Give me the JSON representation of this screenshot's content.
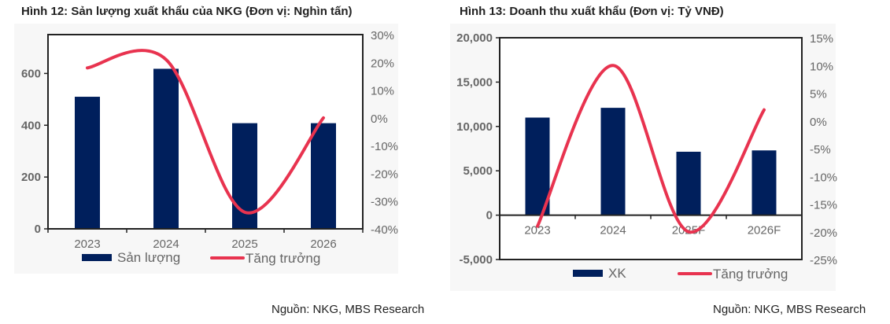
{
  "chart_data": [
    {
      "type": "bar+line",
      "title": "Hình 12: Sản lượng xuất khẩu của NKG (Đơn vị: Nghìn tấn)",
      "categories": [
        "2023",
        "2024",
        "2025",
        "2026"
      ],
      "series": [
        {
          "name": "Sản lượng",
          "type": "bar",
          "axis": "left",
          "values": [
            510,
            618,
            408,
            408
          ],
          "color": "#001f5c"
        },
        {
          "name": "Tăng trưởng",
          "type": "line",
          "axis": "right",
          "values": [
            18,
            21,
            -34,
            0
          ],
          "color": "#e8334f"
        }
      ],
      "left_axis": {
        "ylim": [
          0,
          750
        ],
        "ticks": [
          "0",
          "200",
          "400",
          "600"
        ],
        "tick_values": [
          0,
          200,
          400,
          600
        ]
      },
      "right_axis": {
        "ylim": [
          -40,
          30
        ],
        "ticks": [
          "30%",
          "20%",
          "10%",
          "0%",
          "-10%",
          "-20%",
          "-30%",
          "-40%"
        ],
        "tick_values": [
          30,
          20,
          10,
          0,
          -10,
          -20,
          -30,
          -40
        ]
      },
      "legend": "bottom",
      "grid": false,
      "source": "Nguồn: NKG, MBS Research"
    },
    {
      "type": "bar+line",
      "title": "Hình 13: Doanh thu xuất khẩu (Đơn vị: Tỷ VNĐ)",
      "categories": [
        "2023",
        "2024",
        "2025F",
        "2026F"
      ],
      "series": [
        {
          "name": "XK",
          "type": "bar",
          "axis": "left",
          "values": [
            11000,
            12100,
            7150,
            7300
          ],
          "color": "#001f5c"
        },
        {
          "name": "Tăng trưởng",
          "type": "line",
          "axis": "right",
          "values": [
            -19,
            10,
            -20,
            2
          ],
          "color": "#e8334f"
        }
      ],
      "left_axis": {
        "ylim": [
          -5000,
          20000
        ],
        "ticks": [
          "20,000",
          "15,000",
          "10,000",
          "5,000",
          "0",
          "-5,000"
        ],
        "tick_values": [
          20000,
          15000,
          10000,
          5000,
          0,
          -5000
        ]
      },
      "right_axis": {
        "ylim": [
          -25,
          15
        ],
        "ticks": [
          "15%",
          "10%",
          "5%",
          "0%",
          "-5%",
          "-10%",
          "-15%",
          "-20%",
          "-25%"
        ],
        "tick_values": [
          15,
          10,
          5,
          0,
          -5,
          -10,
          -15,
          -20,
          -25
        ]
      },
      "legend": "bottom",
      "grid": false,
      "source": "Nguồn: NKG, MBS Research"
    }
  ]
}
